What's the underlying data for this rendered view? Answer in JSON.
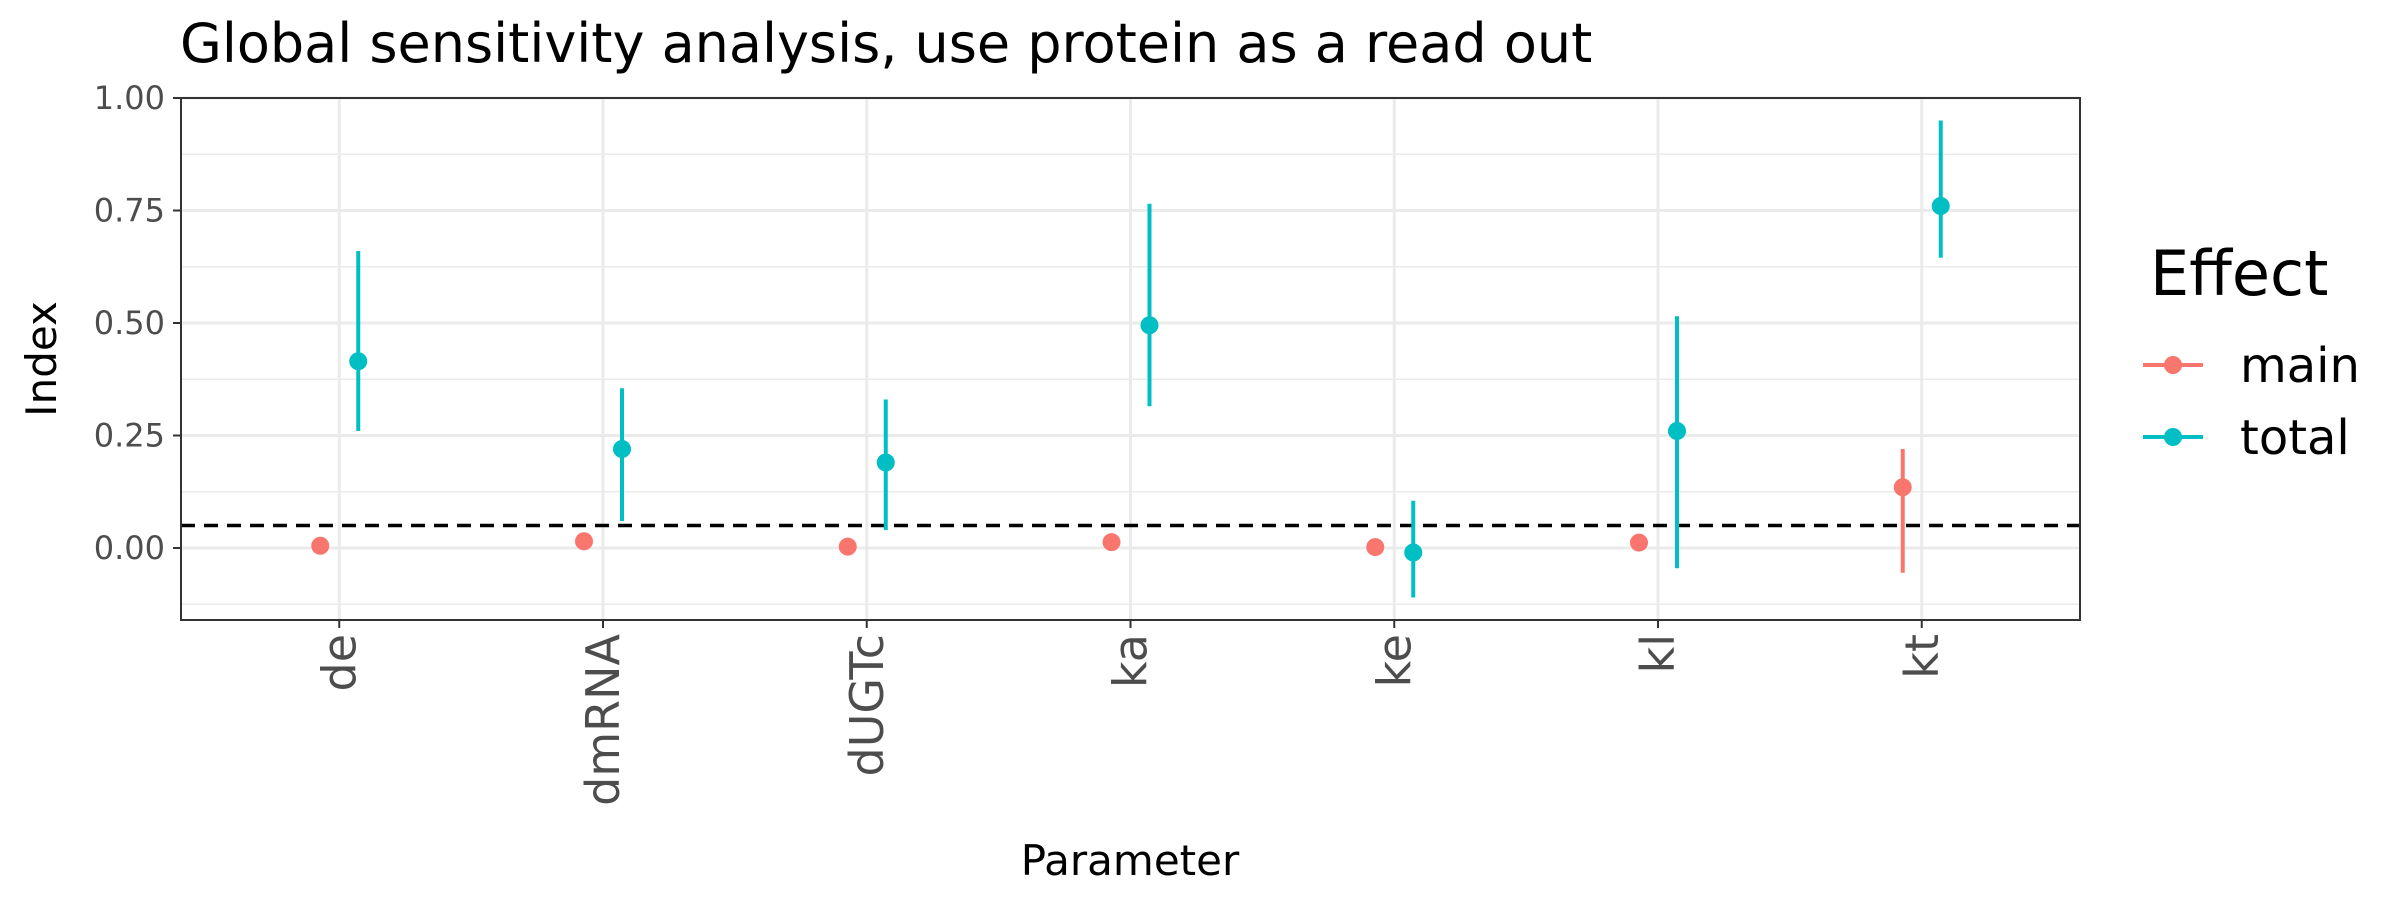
{
  "chart_data": {
    "type": "scatter",
    "title": "Global sensitivity analysis, use protein as a read out",
    "xlabel": "Parameter",
    "ylabel": "Index",
    "categories": [
      "de",
      "dmRNA",
      "dUGTc",
      "ka",
      "ke",
      "kl",
      "kt"
    ],
    "ylim": [
      -0.16,
      1.0
    ],
    "yticks": [
      0.0,
      0.25,
      0.5,
      0.75,
      1.0
    ],
    "ytick_labels": [
      "0.00",
      "0.25",
      "0.50",
      "0.75",
      "1.00"
    ],
    "reference_line": 0.05,
    "grid": true,
    "legend": {
      "title": "Effect",
      "position": "right"
    },
    "series": [
      {
        "name": "main",
        "color": "#F8766D",
        "values": [
          0.005,
          0.015,
          0.003,
          0.013,
          0.002,
          0.012,
          0.135
        ],
        "lower": [
          null,
          null,
          null,
          null,
          null,
          null,
          -0.055
        ],
        "upper": [
          null,
          null,
          null,
          null,
          null,
          null,
          0.22
        ]
      },
      {
        "name": "total",
        "color": "#00BFC4",
        "values": [
          0.415,
          0.22,
          0.19,
          0.495,
          -0.01,
          0.26,
          0.76
        ],
        "lower": [
          0.26,
          0.06,
          0.04,
          0.315,
          -0.11,
          -0.045,
          0.645
        ],
        "upper": [
          0.66,
          0.355,
          0.33,
          0.765,
          0.105,
          0.515,
          0.95
        ]
      }
    ]
  }
}
